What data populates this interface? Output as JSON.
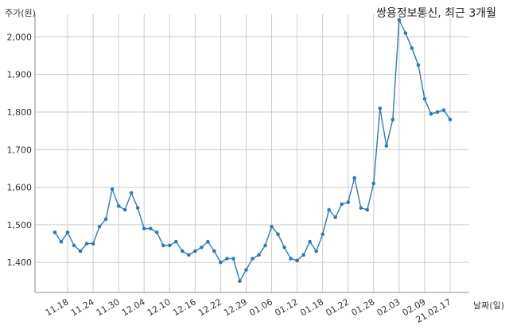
{
  "chart_data": {
    "type": "line",
    "title": "쌍용정보통신, 최근 3개월",
    "ylabel": "주가(원)",
    "xlabel": "날짜(일)",
    "ylim": [
      1320,
      2060
    ],
    "yticks": [
      1400,
      1500,
      1600,
      1700,
      1800,
      1900,
      2000
    ],
    "ytick_labels": [
      "1,400",
      "1,500",
      "1,600",
      "1,700",
      "1,800",
      "1,900",
      "2,000"
    ],
    "xtick_labels": [
      "11.18",
      "11.24",
      "11.30",
      "12.04",
      "12.10",
      "12.16",
      "12.22",
      "12.29",
      "01.06",
      "01.12",
      "01.18",
      "01.22",
      "01.28",
      "02.03",
      "02.09",
      "21.02.17"
    ],
    "xtick_index": [
      2,
      6,
      10,
      14,
      18,
      22,
      26,
      30,
      34,
      38,
      42,
      46,
      50,
      54,
      58,
      62
    ],
    "grid": true,
    "color": "#2e7ab8",
    "series": [
      {
        "values": [
          1480,
          1455,
          1480,
          1445,
          1430,
          1450,
          1450,
          1495,
          1515,
          1595,
          1550,
          1540,
          1585,
          1545,
          1490,
          1490,
          1480,
          1445,
          1445,
          1455,
          1430,
          1420,
          1430,
          1440,
          1455,
          1430,
          1400,
          1410,
          1410,
          1350,
          1380,
          1410,
          1420,
          1445,
          1495,
          1475,
          1440,
          1410,
          1405,
          1420,
          1455,
          1430,
          1475,
          1540,
          1520,
          1555,
          1560,
          1625,
          1545,
          1540,
          1610,
          1810,
          1710,
          1780,
          2045,
          2010,
          1970,
          1925,
          1835,
          1795,
          1800,
          1805,
          1780
        ]
      }
    ]
  }
}
